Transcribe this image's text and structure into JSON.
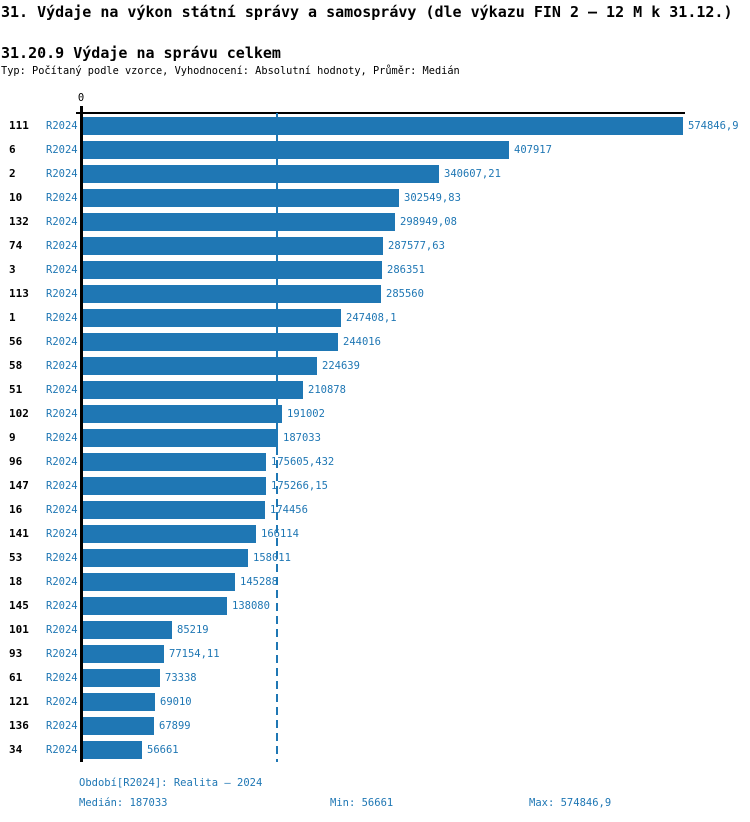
{
  "header": {
    "title": "31. Výdaje na výkon státní správy a samosprávy (dle výkazu FIN 2 – 12 M k 31.12.)",
    "subtitle": "31.20.9 Výdaje na správu celkem",
    "meta": "Typ: Počítaný podle vzorce, Vyhodnocení: Absolutní hodnoty, Průměr: Medián"
  },
  "chart_data": {
    "type": "bar",
    "orientation": "horizontal",
    "title": "31.20.9 Výdaje na správu celkem",
    "axis_origin_label": "0",
    "period_label": "R2024",
    "xlim": [
      0,
      574846.9
    ],
    "median_value": 187033,
    "grid": false,
    "legend": "none",
    "categories": [
      "111",
      "6",
      "2",
      "10",
      "132",
      "74",
      "3",
      "113",
      "1",
      "56",
      "58",
      "51",
      "102",
      "9",
      "96",
      "147",
      "16",
      "141",
      "53",
      "18",
      "145",
      "101",
      "93",
      "61",
      "121",
      "136",
      "34"
    ],
    "values": [
      574846.9,
      407917,
      340607.21,
      302549.83,
      298949.08,
      287577.63,
      286351,
      285560,
      247408.1,
      244016,
      224639,
      210878,
      191002,
      187033,
      175605.432,
      175266.15,
      174456,
      166114,
      158011,
      145288,
      138080,
      85219,
      77154.11,
      73338,
      69010,
      67899,
      56661
    ],
    "value_labels": [
      "574846,9",
      "407917",
      "340607,21",
      "302549,83",
      "298949,08",
      "287577,63",
      "286351",
      "285560",
      "247408,1",
      "244016",
      "224639",
      "210878",
      "191002",
      "187033",
      "175605,432",
      "175266,15",
      "174456",
      "166114",
      "158011",
      "145288",
      "138080",
      "85219",
      "77154,11",
      "73338",
      "69010",
      "67899",
      "56661"
    ],
    "colors": {
      "bar": "#1f77b4",
      "value_text": "#1f77b4",
      "period_text": "#1f77b4",
      "row_number_text": "#000000",
      "median_line": "#1f77b4",
      "axis": "#000000"
    }
  },
  "footer": {
    "period": "Období[R2024]: Realita – 2024",
    "median": "Medián: 187033",
    "min": "Min: 56661",
    "max": "Max: 574846,9"
  }
}
